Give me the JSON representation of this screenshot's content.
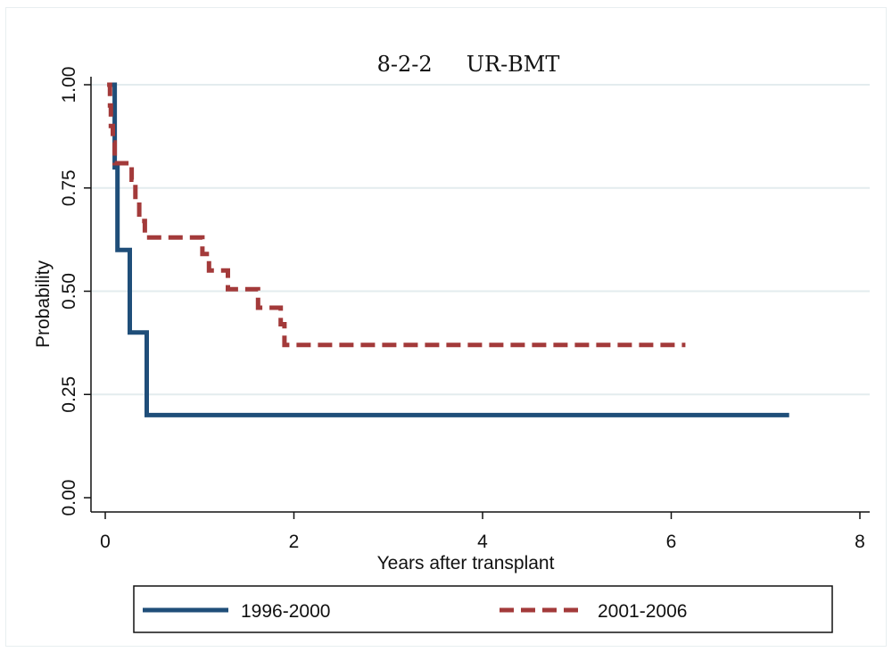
{
  "chart_data": {
    "type": "line",
    "title": "8-2-2     UR-BMT",
    "xlabel": "Years after transplant",
    "ylabel": "Probability",
    "xlim": [
      0,
      8
    ],
    "ylim": [
      0,
      1
    ],
    "x_ticks": [
      {
        "value": 0,
        "label": "0"
      },
      {
        "value": 2,
        "label": "2"
      },
      {
        "value": 4,
        "label": "4"
      },
      {
        "value": 6,
        "label": "6"
      },
      {
        "value": 8,
        "label": "8"
      }
    ],
    "y_ticks": [
      {
        "value": 0,
        "label": "0.00"
      },
      {
        "value": 0.25,
        "label": "0.25"
      },
      {
        "value": 0.5,
        "label": "0.50"
      },
      {
        "value": 0.75,
        "label": "0.75"
      },
      {
        "value": 1,
        "label": "1.00"
      }
    ],
    "grid": "horizontal",
    "legend_position": "bottom",
    "series": [
      {
        "name": "1996-2000",
        "color": "#1f4e79",
        "style": "solid",
        "step": true,
        "points": [
          [
            0.07,
            1.0
          ],
          [
            0.1,
            1.0
          ],
          [
            0.1,
            0.8
          ],
          [
            0.13,
            0.8
          ],
          [
            0.13,
            0.6
          ],
          [
            0.26,
            0.6
          ],
          [
            0.26,
            0.4
          ],
          [
            0.44,
            0.4
          ],
          [
            0.44,
            0.2
          ],
          [
            7.25,
            0.2
          ]
        ]
      },
      {
        "name": "2001-2006",
        "color": "#a33a3a",
        "style": "dashed",
        "step": true,
        "points": [
          [
            0.02,
            1.0
          ],
          [
            0.05,
            1.0
          ],
          [
            0.05,
            0.95
          ],
          [
            0.06,
            0.95
          ],
          [
            0.06,
            0.9
          ],
          [
            0.08,
            0.9
          ],
          [
            0.08,
            0.86
          ],
          [
            0.1,
            0.86
          ],
          [
            0.1,
            0.81
          ],
          [
            0.28,
            0.81
          ],
          [
            0.28,
            0.77
          ],
          [
            0.32,
            0.77
          ],
          [
            0.32,
            0.72
          ],
          [
            0.36,
            0.72
          ],
          [
            0.36,
            0.67
          ],
          [
            0.42,
            0.67
          ],
          [
            0.42,
            0.63
          ],
          [
            1.03,
            0.63
          ],
          [
            1.03,
            0.59
          ],
          [
            1.1,
            0.59
          ],
          [
            1.1,
            0.55
          ],
          [
            1.3,
            0.55
          ],
          [
            1.3,
            0.505
          ],
          [
            1.62,
            0.505
          ],
          [
            1.62,
            0.46
          ],
          [
            1.86,
            0.46
          ],
          [
            1.86,
            0.42
          ],
          [
            1.9,
            0.42
          ],
          [
            1.9,
            0.37
          ],
          [
            6.15,
            0.37
          ]
        ]
      }
    ]
  }
}
